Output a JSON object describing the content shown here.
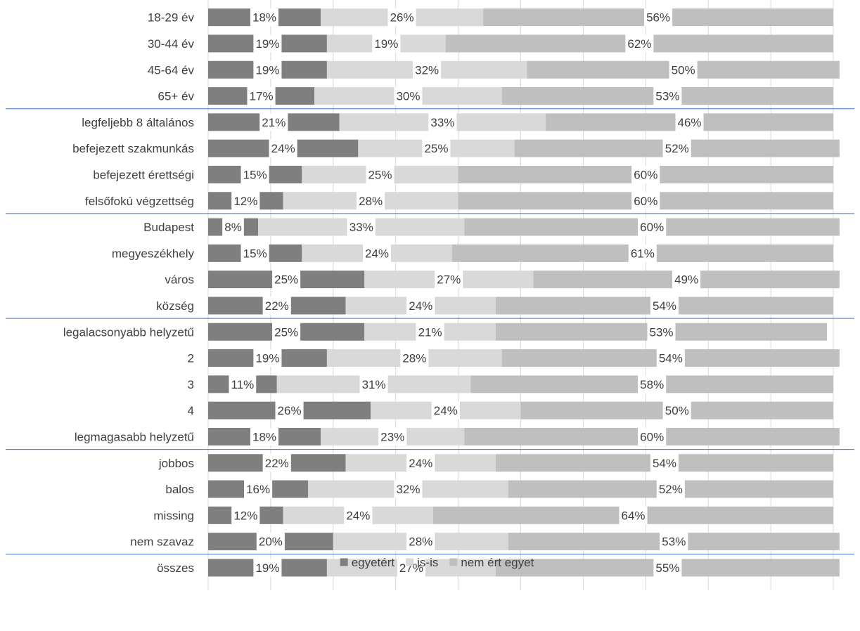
{
  "chart_data": {
    "type": "bar",
    "orientation": "horizontal",
    "stacked": true,
    "percent_stacked": true,
    "title": "",
    "xlabel": "",
    "ylabel": "",
    "xlim": [
      0,
      100
    ],
    "grid": true,
    "legend_position": "bottom",
    "categories": [
      "18-29 év",
      "30-44 év",
      "45-64 év",
      "65+ év",
      "legfeljebb 8 általános",
      "befejezett szakmunkás",
      "befejezett érettségi",
      "felsőfokú végzettség",
      "Budapest",
      "megyeszékhely",
      "város",
      "község",
      "legalacsonyabb helyzetű",
      "2",
      "3",
      "4",
      "legmagasabb helyzetű",
      "jobbos",
      "balos",
      "missing",
      "nem szavaz",
      "összes"
    ],
    "groups": [
      {
        "start": 0,
        "end": 3
      },
      {
        "start": 4,
        "end": 7
      },
      {
        "start": 8,
        "end": 11
      },
      {
        "start": 12,
        "end": 16
      },
      {
        "start": 17,
        "end": 20
      },
      {
        "start": 21,
        "end": 21
      }
    ],
    "series": [
      {
        "name": "egyetért",
        "color": "#7f7f7f",
        "values": [
          18,
          19,
          19,
          17,
          21,
          24,
          15,
          12,
          8,
          15,
          25,
          22,
          25,
          19,
          11,
          26,
          18,
          22,
          16,
          12,
          20,
          19
        ],
        "labels": [
          "18%",
          "19%",
          "19%",
          "17%",
          "21%",
          "24%",
          "15%",
          "12%",
          "8%",
          "15%",
          "25%",
          "22%",
          "25%",
          "19%",
          "11%",
          "26%",
          "18%",
          "22%",
          "16%",
          "12%",
          "20%",
          "19%"
        ]
      },
      {
        "name": "is-is",
        "color": "#d9d9d9",
        "values": [
          26,
          19,
          32,
          30,
          33,
          25,
          25,
          28,
          33,
          24,
          27,
          24,
          21,
          28,
          31,
          24,
          23,
          24,
          32,
          24,
          28,
          27
        ],
        "labels": [
          "26%",
          "19%",
          "32%",
          "30%",
          "33%",
          "25%",
          "25%",
          "28%",
          "33%",
          "24%",
          "27%",
          "24%",
          "21%",
          "28%",
          "31%",
          "24%",
          "23%",
          "24%",
          "32%",
          "24%",
          "28%",
          "27%"
        ]
      },
      {
        "name": "nem ért egyet",
        "color": "#bfbfbf",
        "values": [
          56,
          62,
          50,
          53,
          46,
          52,
          60,
          60,
          60,
          61,
          49,
          54,
          53,
          54,
          58,
          50,
          60,
          54,
          52,
          64,
          53,
          55
        ],
        "labels": [
          "56%",
          "62%",
          "50%",
          "53%",
          "46%",
          "52%",
          "60%",
          "60%",
          "60%",
          "61%",
          "49%",
          "54%",
          "53%",
          "54%",
          "58%",
          "50%",
          "60%",
          "54%",
          "52%",
          "64%",
          "53%",
          "55%"
        ]
      }
    ]
  }
}
